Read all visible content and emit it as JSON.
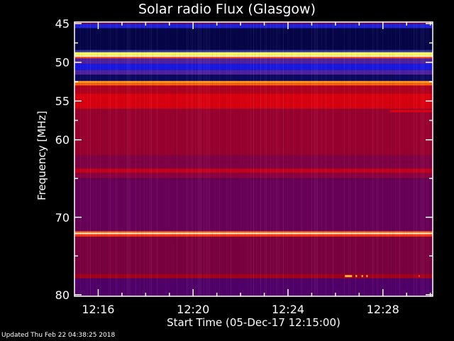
{
  "chart_data": {
    "type": "heatmap",
    "title": "Solar radio Flux (Glasgow)",
    "xlabel": "Start Time (05-Dec-17 12:15:00)",
    "ylabel": "Frequency [MHz]",
    "xlim_minutes_after_12": [
      15,
      30.1
    ],
    "ylim": [
      44.8,
      80.2
    ],
    "x_ticks": [
      {
        "label": "12:16",
        "value": 16
      },
      {
        "label": "12:20",
        "value": 20
      },
      {
        "label": "12:24",
        "value": 24
      },
      {
        "label": "12:28",
        "value": 28
      }
    ],
    "y_ticks": [
      {
        "label": "45",
        "value": 45
      },
      {
        "label": "50",
        "value": 50
      },
      {
        "label": "55",
        "value": 55
      },
      {
        "label": "60",
        "value": 60
      },
      {
        "label": "70",
        "value": 70
      },
      {
        "label": "80",
        "value": 80
      }
    ],
    "bands": [
      {
        "f0": 44.8,
        "f1": 45.0,
        "color": "#a00010"
      },
      {
        "f0": 45.0,
        "f1": 45.6,
        "color": "#2020d8"
      },
      {
        "f0": 45.6,
        "f1": 48.4,
        "color": "#050548"
      },
      {
        "f0": 48.4,
        "f1": 48.7,
        "color": "#3030a0"
      },
      {
        "f0": 48.7,
        "f1": 49.1,
        "color": "#ffff60"
      },
      {
        "f0": 49.1,
        "f1": 49.3,
        "color": "#fff0c0"
      },
      {
        "f0": 49.3,
        "f1": 49.5,
        "color": "#ff5020"
      },
      {
        "f0": 49.5,
        "f1": 50.2,
        "color": "#5020a0"
      },
      {
        "f0": 50.2,
        "f1": 51.0,
        "color": "#1818e0"
      },
      {
        "f0": 51.0,
        "f1": 51.6,
        "color": "#5020a0"
      },
      {
        "f0": 51.6,
        "f1": 52.4,
        "color": "#0a0a60"
      },
      {
        "f0": 52.4,
        "f1": 52.7,
        "color": "#ff9020"
      },
      {
        "f0": 52.7,
        "f1": 53.0,
        "color": "#ff6010"
      },
      {
        "f0": 53.0,
        "f1": 54.0,
        "color": "#b00020"
      },
      {
        "f0": 54.0,
        "f1": 56.0,
        "color": "#d80010"
      },
      {
        "f0": 56.0,
        "f1": 62.0,
        "color": "#980030"
      },
      {
        "f0": 62.0,
        "f1": 63.7,
        "color": "#800045"
      },
      {
        "f0": 63.7,
        "f1": 64.3,
        "color": "#c00020"
      },
      {
        "f0": 64.3,
        "f1": 65.0,
        "color": "#8a0040"
      },
      {
        "f0": 65.0,
        "f1": 71.8,
        "color": "#680058"
      },
      {
        "f0": 71.8,
        "f1": 72.0,
        "color": "#ff6020"
      },
      {
        "f0": 72.0,
        "f1": 72.2,
        "color": "#fff0c0"
      },
      {
        "f0": 72.2,
        "f1": 72.5,
        "color": "#ff3010"
      },
      {
        "f0": 72.5,
        "f1": 77.3,
        "color": "#7a0040"
      },
      {
        "f0": 77.3,
        "f1": 77.9,
        "color": "#a00020"
      },
      {
        "f0": 77.9,
        "f1": 80.2,
        "color": "#500068"
      }
    ],
    "features": [
      {
        "t0": 28.3,
        "t1": 30.1,
        "f": 56.3,
        "color": "#e00010"
      },
      {
        "t0": 26.4,
        "t1": 26.7,
        "f": 77.6,
        "color": "#ffb040"
      },
      {
        "t0": 26.85,
        "t1": 26.9,
        "f": 77.6,
        "color": "#ffb040"
      },
      {
        "t0": 27.1,
        "t1": 27.15,
        "f": 77.6,
        "color": "#ffb040"
      },
      {
        "t0": 27.3,
        "t1": 27.35,
        "f": 77.6,
        "color": "#ffb040"
      },
      {
        "t0": 29.5,
        "t1": 29.55,
        "f": 77.6,
        "color": "#ff3030"
      }
    ]
  },
  "footer": {
    "updated": "Updated Thu Feb 22 04:38:25 2018"
  }
}
